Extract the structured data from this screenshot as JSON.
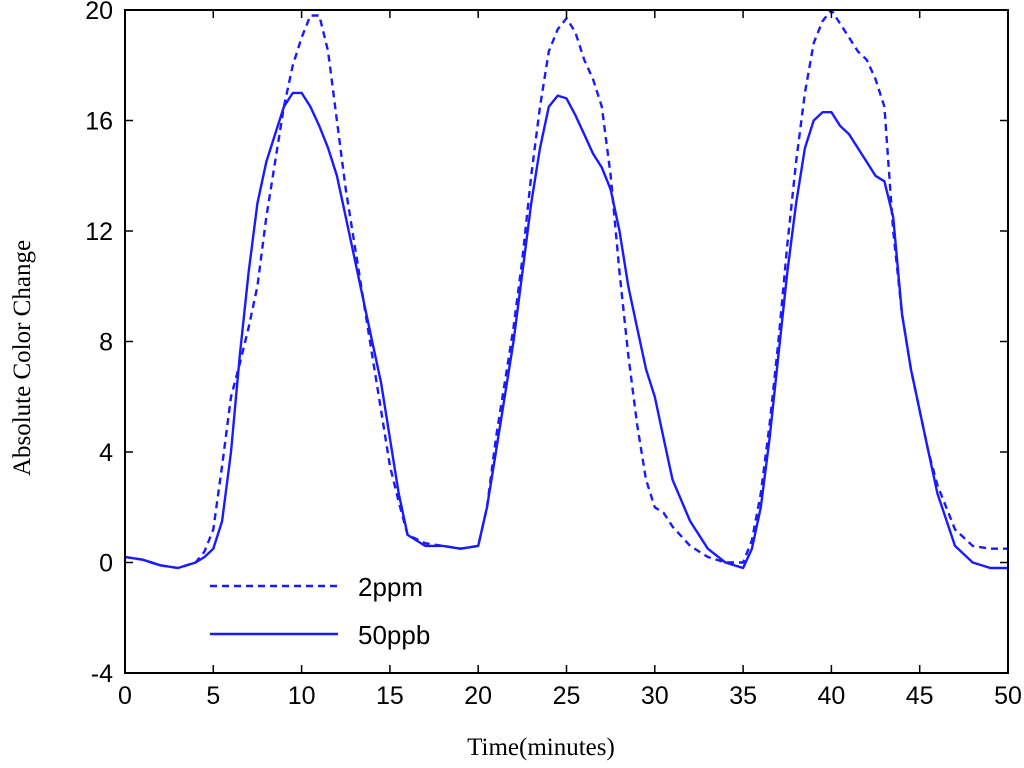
{
  "chart_data": {
    "type": "line",
    "title": "",
    "xlabel": "Time(minutes)",
    "ylabel": "Absolute Color Change",
    "xlim": [
      0,
      50
    ],
    "ylim": [
      -4,
      20
    ],
    "xticks": [
      "0",
      "5",
      "10",
      "15",
      "20",
      "25",
      "30",
      "35",
      "40",
      "45",
      "50"
    ],
    "yticks": [
      "-4",
      "0",
      "4",
      "8",
      "12",
      "16",
      "20"
    ],
    "grid": false,
    "legend_position": "bottom-left",
    "colors": {
      "line": "#1a1aff",
      "axis": "#000000"
    },
    "series": [
      {
        "name": "2ppm",
        "style": "dashed",
        "x": [
          0,
          1,
          2,
          3,
          4,
          4.5,
          5,
          5.5,
          6,
          6.5,
          7,
          7.5,
          8,
          8.5,
          9,
          9.5,
          10,
          10.5,
          11,
          11.5,
          12,
          12.5,
          13,
          13.5,
          14,
          14.5,
          15,
          15.5,
          16,
          17,
          18,
          19,
          20,
          20.5,
          21,
          21.5,
          22,
          22.5,
          23,
          23.5,
          24,
          24.5,
          25,
          25.5,
          26,
          26.5,
          27,
          27.5,
          28,
          28.5,
          29,
          29.5,
          30,
          30.5,
          31,
          32,
          33,
          34,
          35,
          35.5,
          36,
          36.5,
          37,
          37.5,
          38,
          38.5,
          39,
          39.5,
          40,
          40.5,
          41,
          41.5,
          42,
          42.5,
          43,
          43.5,
          44,
          44.5,
          45,
          45.5,
          46,
          47,
          48,
          49,
          50
        ],
        "y": [
          0.2,
          0.1,
          -0.1,
          -0.2,
          0.0,
          0.4,
          1.2,
          3.5,
          6.0,
          7.2,
          8.5,
          10.0,
          12.5,
          14.5,
          16.5,
          18.0,
          19.0,
          19.8,
          19.8,
          18.5,
          16.0,
          13.5,
          11.5,
          9.5,
          7.5,
          5.5,
          3.5,
          2.2,
          1.0,
          0.7,
          0.6,
          0.5,
          0.6,
          2.0,
          4.5,
          6.5,
          8.5,
          11.0,
          14.0,
          16.5,
          18.5,
          19.3,
          19.7,
          19.2,
          18.2,
          17.5,
          16.5,
          14.0,
          10.5,
          7.5,
          5.0,
          3.0,
          2.0,
          1.8,
          1.3,
          0.6,
          0.2,
          0.0,
          0.0,
          0.8,
          2.5,
          5.0,
          8.0,
          11.5,
          14.5,
          17.0,
          18.8,
          19.6,
          20.0,
          19.5,
          19.0,
          18.5,
          18.2,
          17.5,
          16.5,
          12.0,
          9.0,
          7.0,
          5.5,
          4.0,
          2.8,
          1.2,
          0.6,
          0.5,
          0.5
        ]
      },
      {
        "name": "50ppb",
        "style": "solid",
        "x": [
          0,
          1,
          2,
          3,
          4,
          4.5,
          5,
          5.5,
          6,
          6.5,
          7,
          7.5,
          8,
          8.5,
          9,
          9.5,
          10,
          10.5,
          11,
          11.5,
          12,
          12.5,
          13,
          13.5,
          14,
          14.5,
          15,
          15.5,
          16,
          17,
          18,
          19,
          20,
          20.5,
          21,
          21.5,
          22,
          22.5,
          23,
          23.5,
          24,
          24.5,
          25,
          25.5,
          26,
          26.5,
          27,
          27.5,
          28,
          28.5,
          29,
          29.5,
          30,
          30.5,
          31,
          32,
          33,
          34,
          35,
          35.5,
          36,
          36.5,
          37,
          37.5,
          38,
          38.5,
          39,
          39.5,
          40,
          40.5,
          41,
          41.5,
          42,
          42.5,
          43,
          43.5,
          44,
          44.5,
          45,
          45.5,
          46,
          47,
          48,
          49,
          50
        ],
        "y": [
          0.2,
          0.1,
          -0.1,
          -0.2,
          0.0,
          0.2,
          0.5,
          1.5,
          4.0,
          7.5,
          10.5,
          13.0,
          14.5,
          15.5,
          16.5,
          17.0,
          17.0,
          16.5,
          15.8,
          15.0,
          14.0,
          12.5,
          11.0,
          9.5,
          8.0,
          6.5,
          4.5,
          2.5,
          1.0,
          0.6,
          0.6,
          0.5,
          0.6,
          2.0,
          4.0,
          6.0,
          8.0,
          10.5,
          13.0,
          15.0,
          16.5,
          16.9,
          16.8,
          16.2,
          15.5,
          14.8,
          14.3,
          13.5,
          12.0,
          10.0,
          8.5,
          7.0,
          6.0,
          4.5,
          3.0,
          1.5,
          0.5,
          0.0,
          -0.2,
          0.5,
          2.0,
          4.5,
          7.5,
          10.5,
          13.0,
          15.0,
          16.0,
          16.3,
          16.3,
          15.8,
          15.5,
          15.0,
          14.5,
          14.0,
          13.8,
          12.5,
          9.0,
          7.0,
          5.5,
          4.0,
          2.5,
          0.6,
          0.0,
          -0.2,
          -0.2
        ]
      }
    ]
  }
}
